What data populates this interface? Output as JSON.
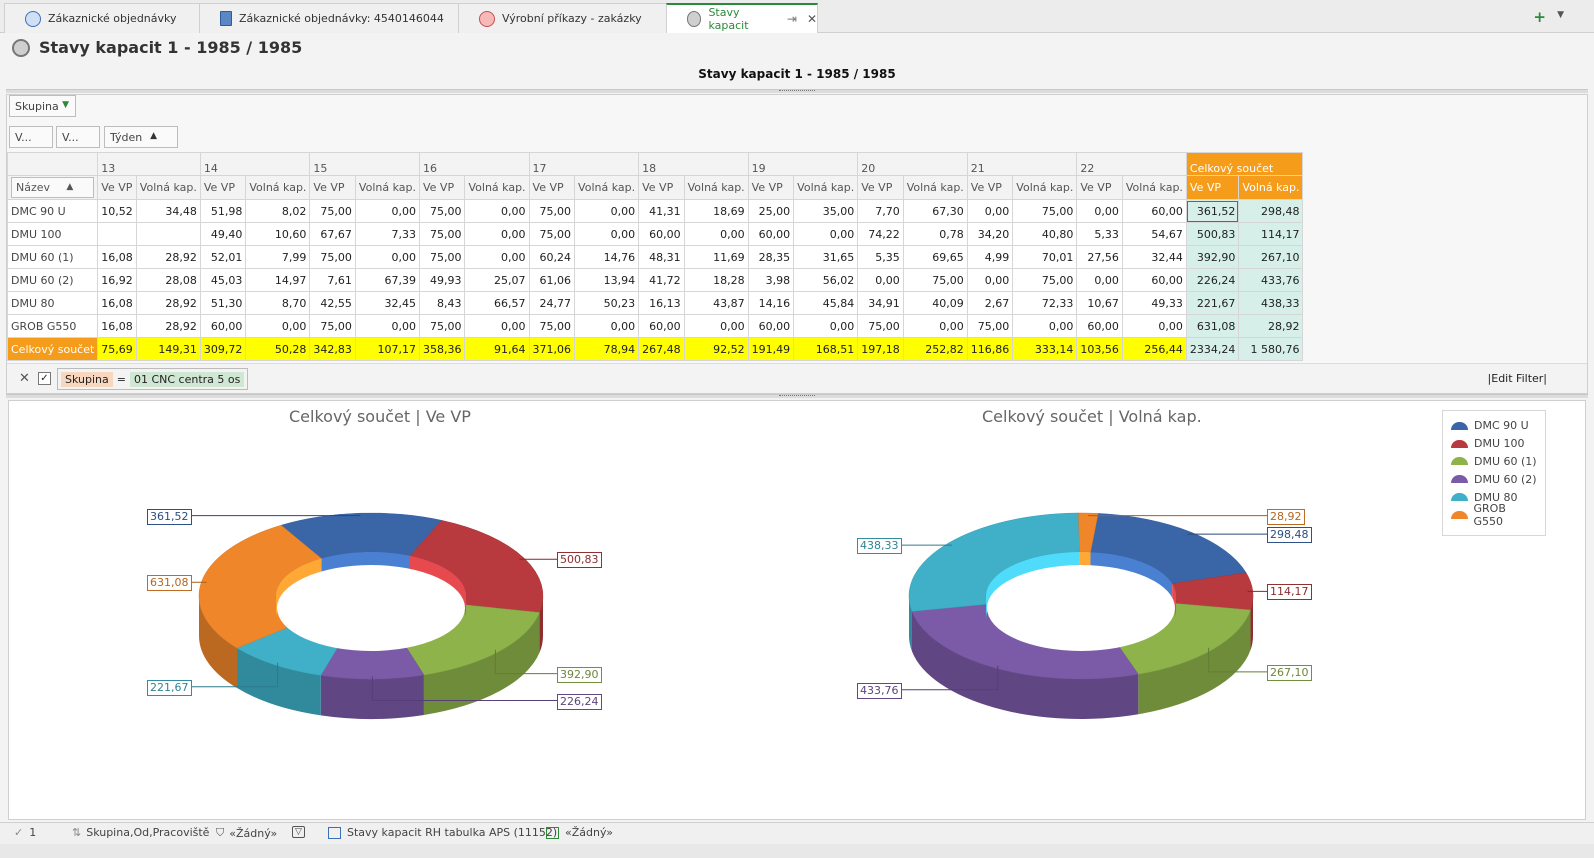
{
  "tabs": [
    {
      "label": "Zákaznické objednávky"
    },
    {
      "label": "Zákaznické objednávky: 4540146044"
    },
    {
      "label": "Výrobní příkazy  - zakázky"
    },
    {
      "label": "Stavy kapacit"
    }
  ],
  "header": {
    "title": "Stavy kapacit  1 - 1985 / 1985",
    "subtitle": "Stavy kapacit  1 - 1985 / 1985"
  },
  "pivot": {
    "fields": {
      "group": "Skupina",
      "v1": "V...",
      "v2": "V...",
      "week": "Týden",
      "name": "Název"
    },
    "weeks": [
      "13",
      "14",
      "15",
      "16",
      "17",
      "18",
      "19",
      "20",
      "21",
      "22"
    ],
    "grand_total_label": "Celkový součet",
    "col_ve": "Ve VP",
    "col_vol": "Volná kap.",
    "rows": [
      {
        "name": "DMC 90 U",
        "cells": [
          "10,52",
          "34,48",
          "51,98",
          "8,02",
          "75,00",
          "0,00",
          "75,00",
          "0,00",
          "75,00",
          "0,00",
          "41,31",
          "18,69",
          "25,00",
          "35,00",
          "7,70",
          "67,30",
          "0,00",
          "75,00",
          "0,00",
          "60,00"
        ],
        "gt_ve": "361,52",
        "gt_vol": "298,48"
      },
      {
        "name": "DMU 100",
        "cells": [
          "",
          "",
          "49,40",
          "10,60",
          "67,67",
          "7,33",
          "75,00",
          "0,00",
          "75,00",
          "0,00",
          "60,00",
          "0,00",
          "60,00",
          "0,00",
          "74,22",
          "0,78",
          "34,20",
          "40,80",
          "5,33",
          "54,67"
        ],
        "gt_ve": "500,83",
        "gt_vol": "114,17"
      },
      {
        "name": "DMU 60 (1)",
        "cells": [
          "16,08",
          "28,92",
          "52,01",
          "7,99",
          "75,00",
          "0,00",
          "75,00",
          "0,00",
          "60,24",
          "14,76",
          "48,31",
          "11,69",
          "28,35",
          "31,65",
          "5,35",
          "69,65",
          "4,99",
          "70,01",
          "27,56",
          "32,44"
        ],
        "gt_ve": "392,90",
        "gt_vol": "267,10"
      },
      {
        "name": "DMU 60 (2)",
        "cells": [
          "16,92",
          "28,08",
          "45,03",
          "14,97",
          "7,61",
          "67,39",
          "49,93",
          "25,07",
          "61,06",
          "13,94",
          "41,72",
          "18,28",
          "3,98",
          "56,02",
          "0,00",
          "75,00",
          "0,00",
          "75,00",
          "0,00",
          "60,00"
        ],
        "gt_ve": "226,24",
        "gt_vol": "433,76"
      },
      {
        "name": "DMU 80",
        "cells": [
          "16,08",
          "28,92",
          "51,30",
          "8,70",
          "42,55",
          "32,45",
          "8,43",
          "66,57",
          "24,77",
          "50,23",
          "16,13",
          "43,87",
          "14,16",
          "45,84",
          "34,91",
          "40,09",
          "2,67",
          "72,33",
          "10,67",
          "49,33"
        ],
        "gt_ve": "221,67",
        "gt_vol": "438,33"
      },
      {
        "name": "GROB G550",
        "cells": [
          "16,08",
          "28,92",
          "60,00",
          "0,00",
          "75,00",
          "0,00",
          "75,00",
          "0,00",
          "75,00",
          "0,00",
          "60,00",
          "0,00",
          "60,00",
          "0,00",
          "75,00",
          "0,00",
          "75,00",
          "0,00",
          "60,00",
          "0,00"
        ],
        "gt_ve": "631,08",
        "gt_vol": "28,92"
      }
    ],
    "totals": {
      "name": "Celkový součet",
      "cells": [
        "75,69",
        "149,31",
        "309,72",
        "50,28",
        "342,83",
        "107,17",
        "358,36",
        "91,64",
        "371,06",
        "78,94",
        "267,48",
        "92,52",
        "191,49",
        "168,51",
        "197,18",
        "252,82",
        "116,86",
        "333,14",
        "103,56",
        "256,44"
      ],
      "gt_ve": "2334,24",
      "gt_vol": "1 580,76"
    }
  },
  "filter": {
    "field": "Skupina",
    "op": "=",
    "value": "01 CNC centra 5 os",
    "edit": "|Edit Filter|"
  },
  "colors": {
    "DMC 90 U": "#3a66a8",
    "DMU 100": "#b83a3e",
    "DMU 60 (1)": "#8eb34a",
    "DMU 60 (2)": "#7b5aa8",
    "DMU 80": "#3fb0c8",
    "GROB G550": "#f0862a",
    "accent": "#f59c1a",
    "total": "#ffff00"
  },
  "chart_data": [
    {
      "type": "pie",
      "title": "Celkový součet | Ve VP",
      "labels": [
        "DMC 90 U",
        "DMU 100",
        "DMU 60 (1)",
        "DMU 60 (2)",
        "DMU 80",
        "GROB G550"
      ],
      "values": [
        361.52,
        500.83,
        392.9,
        226.24,
        221.67,
        631.08
      ],
      "data_labels": [
        "361,52",
        "500,83",
        "392,90",
        "226,24",
        "221,67",
        "631,08"
      ],
      "style": "3d-doughnut"
    },
    {
      "type": "pie",
      "title": "Celkový součet | Volná kap.",
      "labels": [
        "DMC 90 U",
        "DMU 100",
        "DMU 60 (1)",
        "DMU 60 (2)",
        "DMU 80",
        "GROB G550"
      ],
      "values": [
        298.48,
        114.17,
        267.1,
        433.76,
        438.33,
        28.92
      ],
      "data_labels": [
        "298,48",
        "114,17",
        "267,10",
        "433,76",
        "438,33",
        "28,92"
      ],
      "style": "3d-doughnut",
      "legend": "top-right"
    }
  ],
  "status": {
    "count": "1",
    "sort": "Skupina,Od,Pracoviště",
    "filter": "«Žádný»",
    "layout": "Stavy kapacit RH tabulka APS (11152)",
    "view": "«Žádný»"
  }
}
